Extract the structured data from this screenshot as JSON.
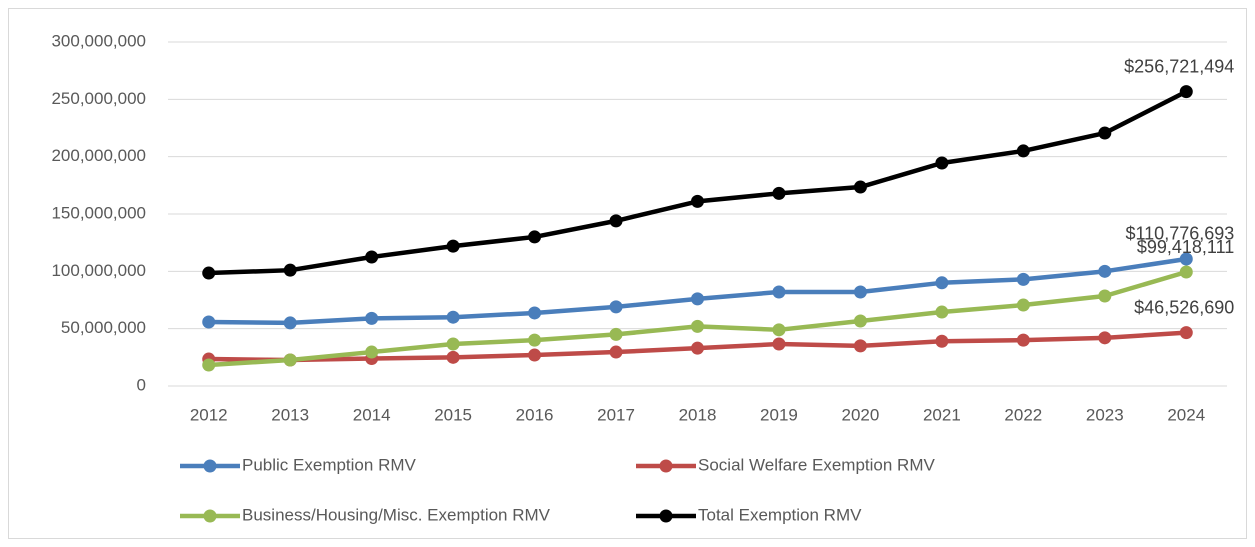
{
  "chart_data": {
    "type": "line",
    "categories": [
      "2012",
      "2013",
      "2014",
      "2015",
      "2016",
      "2017",
      "2018",
      "2019",
      "2020",
      "2021",
      "2022",
      "2023",
      "2024"
    ],
    "ylim": [
      0,
      300000000
    ],
    "yticks": [
      0,
      {
        "value": 50000000,
        "label": "50,000,000"
      },
      {
        "value": 100000000,
        "label": "100,000,000"
      },
      {
        "value": 150000000,
        "label": "150,000,000"
      },
      {
        "value": 200000000,
        "label": "200,000,000"
      },
      {
        "value": 250000000,
        "label": "250,000,000"
      },
      {
        "value": 300000000,
        "label": "300,000,000"
      }
    ],
    "grid": true,
    "legend": "bottom",
    "series": [
      {
        "name": "Public Exemption RMV",
        "color": "#4a7ebb",
        "values": [
          55800000,
          55000000,
          59000000,
          60000000,
          63700000,
          69000000,
          76000000,
          82000000,
          82000000,
          90000000,
          93000000,
          100000000,
          110776693
        ],
        "value_labels": [
          null,
          null,
          null,
          null,
          null,
          null,
          null,
          null,
          null,
          null,
          null,
          null,
          "$110,776,693"
        ]
      },
      {
        "name": "Social Welfare Exemption RMV",
        "color": "#be4b48",
        "values": [
          23500000,
          22700000,
          24000000,
          25000000,
          27000000,
          29600000,
          33000000,
          36600000,
          35000000,
          39000000,
          40000000,
          42000000,
          46526690
        ],
        "value_labels": [
          null,
          null,
          null,
          null,
          null,
          null,
          null,
          null,
          null,
          null,
          null,
          null,
          "$46,526,690"
        ]
      },
      {
        "name": "Business/Housing/Misc. Exemption RMV",
        "color": "#98b954",
        "values": [
          18300000,
          22700000,
          29600000,
          36600000,
          40000000,
          45000000,
          52000000,
          49000000,
          56700000,
          64500000,
          70600000,
          78500000,
          99418111
        ],
        "value_labels": [
          null,
          null,
          null,
          null,
          null,
          null,
          null,
          null,
          null,
          null,
          null,
          null,
          "$99,418,111"
        ]
      },
      {
        "name": "Total Exemption RMV",
        "color": "#000000",
        "values": [
          98500000,
          101000000,
          112500000,
          122000000,
          130000000,
          144000000,
          161000000,
          168000000,
          173500000,
          194500000,
          205000000,
          220600000,
          256721494
        ],
        "value_labels": [
          null,
          null,
          null,
          null,
          null,
          null,
          null,
          null,
          null,
          null,
          null,
          null,
          "$256,721,494"
        ]
      }
    ]
  }
}
